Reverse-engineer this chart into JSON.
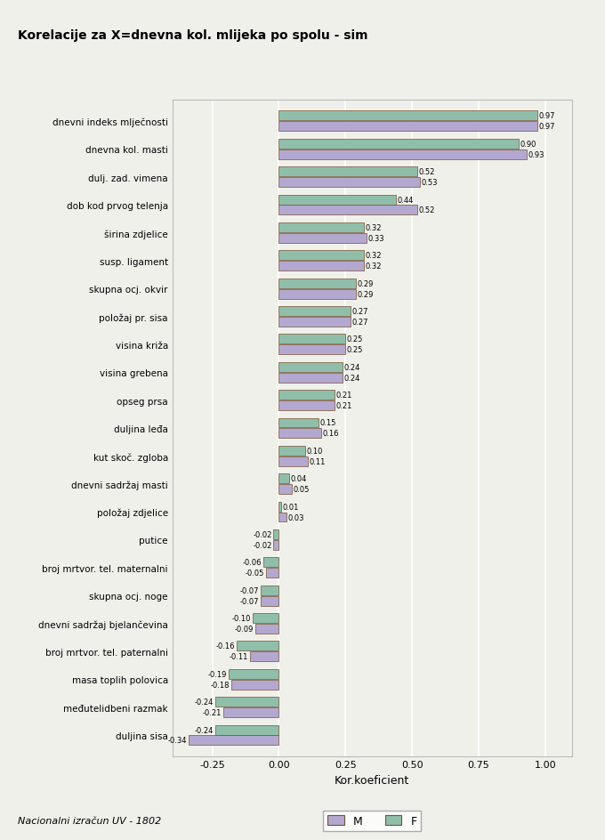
{
  "title": "Korelacije za X=dnevna kol. mlijeka po spolu - sim",
  "xlabel": "Kor.koeficient",
  "footnote": "Nacionalni izračun UV - 1802",
  "color_M": "#b3a8d0",
  "color_F": "#8fbfaa",
  "bar_edge_color": "#7a5030",
  "bg_color": "#f0f0eb",
  "plot_bg": "#f0f0eb",
  "categories": [
    "duljina sisa",
    "međutelidbeni razmak",
    "masa toplih polovica",
    "broj mrtvor. tel. paternalni",
    "dnevni sadržaj bjelančevina",
    "skupna ocj. noge",
    "broj mrtvor. tel. maternalni",
    "putice",
    "položaj zdjelice",
    "dnevni sadržaj masti",
    "kut skoč. zgloba",
    "duljina leđa",
    "opseg prsa",
    "visina grebena",
    "visina križa",
    "položaj pr. sisa",
    "skupna ocj. okvir",
    "susp. ligament",
    "širina zdjelice",
    "dob kod prvog telenja",
    "dulj. zad. vimena",
    "dnevna kol. masti",
    "dnevni indeks mlječnosti"
  ],
  "M_values": [
    -0.34,
    -0.21,
    -0.18,
    -0.11,
    -0.09,
    -0.07,
    -0.05,
    -0.02,
    0.03,
    0.05,
    0.11,
    0.16,
    0.21,
    0.24,
    0.25,
    0.27,
    0.29,
    0.32,
    0.33,
    0.52,
    0.53,
    0.93,
    0.97
  ],
  "F_values": [
    -0.24,
    -0.24,
    -0.19,
    -0.16,
    -0.1,
    -0.07,
    -0.06,
    -0.02,
    0.01,
    0.04,
    0.1,
    0.15,
    0.21,
    0.24,
    0.25,
    0.27,
    0.29,
    0.32,
    0.32,
    0.44,
    0.52,
    0.9,
    0.97
  ],
  "M_labels": [
    "-0.34",
    "-0.21",
    "-0.18",
    "-0.11",
    "-0.09",
    "-0.07",
    "-0.05",
    "-0.02",
    "0.03",
    "0.05",
    "0.11",
    "0.16",
    "0.21",
    "0.24",
    "0.25",
    "0.27",
    "0.29",
    "0.32",
    "0.33",
    "0.52",
    "0.53",
    "0.93",
    "0.97"
  ],
  "F_labels": [
    "-0.24",
    "-0.24",
    "-0.19",
    "-0.16",
    "-0.10",
    "-0.07",
    "-0.06",
    "-0.02",
    "0.01",
    "0.04",
    "0.10",
    "0.15",
    "0.21",
    "0.24",
    "0.25",
    "0.27",
    "0.29",
    "0.32",
    "0.32",
    "0.44",
    "0.52",
    "0.90",
    "0.97"
  ]
}
